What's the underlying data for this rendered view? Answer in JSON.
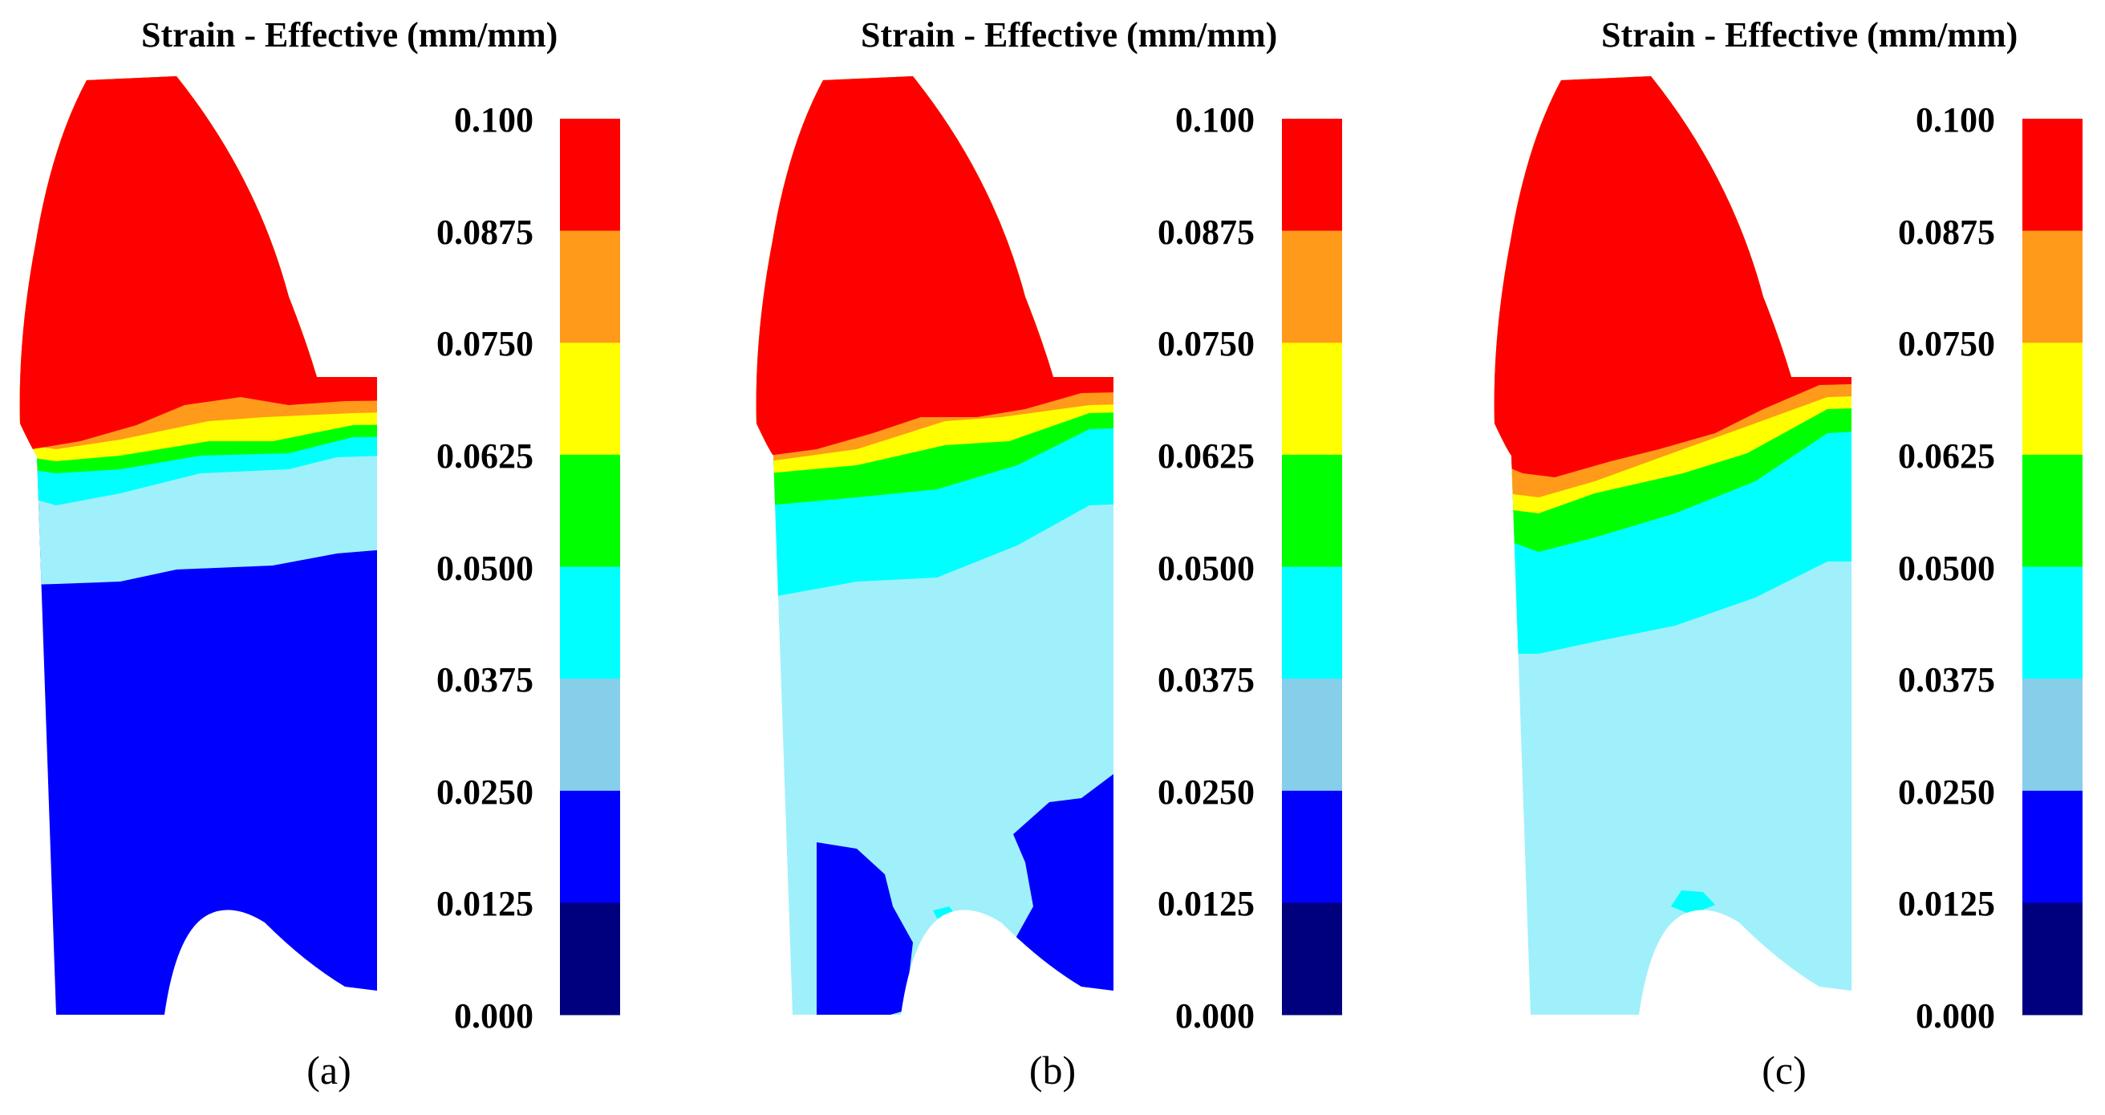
{
  "figure": {
    "colorbar_ticks": [
      "0.100",
      "0.0875",
      "0.0750",
      "0.0625",
      "0.0500",
      "0.0375",
      "0.0250",
      "0.0125",
      "0.000"
    ],
    "colorbar_colors": [
      "#ff0000",
      "#ff9a1a",
      "#ffff00",
      "#00ff00",
      "#00ffff",
      "#87ceeb",
      "#0000ff",
      "#00007f"
    ],
    "panels": [
      {
        "title": "Strain - Effective (mm/mm)",
        "caption": "(a)"
      },
      {
        "title": "Strain - Effective (mm/mm)",
        "caption": "(b)"
      },
      {
        "title": "Strain - Effective (mm/mm)",
        "caption": "(c)"
      }
    ]
  }
}
